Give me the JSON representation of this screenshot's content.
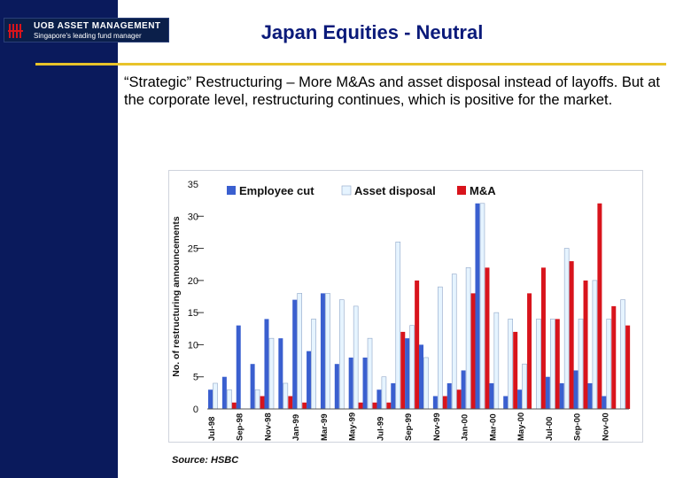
{
  "header": {
    "brand_name": "UOB ASSET MANAGEMENT",
    "brand_tagline": "Singapore's leading fund manager",
    "title": "Japan Equities - Neutral",
    "accent_color": "#e8c32a",
    "sidebar_color": "#0a1a5c"
  },
  "body": {
    "subtitle": "“Strategic” Restructuring – More M&As and asset disposal instead of layoffs.  But at the corporate level, restructuring continues, which is positive for the market."
  },
  "footer": {
    "source": "Source: HSBC"
  },
  "chart_data": {
    "type": "bar",
    "title": "",
    "xlabel": "",
    "ylabel": "No. of restructuring announcements",
    "ylim": [
      0,
      35
    ],
    "yticks": [
      0,
      5,
      10,
      15,
      20,
      25,
      30,
      35
    ],
    "grid": false,
    "legend_position": "top",
    "tick_labels": [
      "Jul-98",
      "Sep-98",
      "Nov-98",
      "Jan-99",
      "Mar-99",
      "May-99",
      "Jul-99",
      "Sep-99",
      "Nov-99",
      "Jan-00",
      "Mar-00",
      "May-00",
      "Jul-00",
      "Sep-00",
      "Nov-00"
    ],
    "categories": [
      "Jul-98",
      "Aug-98",
      "Sep-98",
      "Oct-98",
      "Nov-98",
      "Dec-98",
      "Jan-99",
      "Feb-99",
      "Mar-99",
      "Apr-99",
      "May-99",
      "Jun-99",
      "Jul-99",
      "Aug-99",
      "Sep-99",
      "Oct-99",
      "Nov-99",
      "Dec-99",
      "Jan-00",
      "Feb-00",
      "Mar-00",
      "Apr-00",
      "May-00",
      "Jun-00",
      "Jul-00",
      "Aug-00",
      "Sep-00",
      "Oct-00",
      "Nov-00",
      "Dec-00"
    ],
    "series": [
      {
        "name": "Employee cut",
        "color": "#3a5fcf",
        "values": [
          3,
          5,
          13,
          7,
          14,
          11,
          17,
          9,
          18,
          7,
          8,
          8,
          3,
          4,
          11,
          10,
          2,
          4,
          6,
          32,
          4,
          2,
          3,
          0,
          5,
          4,
          6,
          4,
          2,
          0
        ]
      },
      {
        "name": "Asset disposal",
        "color": "#e6f4ff",
        "values": [
          4,
          3,
          0,
          3,
          11,
          4,
          18,
          14,
          18,
          17,
          16,
          11,
          5,
          26,
          13,
          8,
          19,
          21,
          22,
          32,
          15,
          14,
          7,
          14,
          14,
          25,
          14,
          20,
          14,
          17
        ]
      },
      {
        "name": "M&A",
        "color": "#d8141c",
        "values": [
          0,
          1,
          0,
          2,
          0,
          2,
          1,
          0,
          0,
          0,
          1,
          1,
          1,
          12,
          20,
          0,
          2,
          3,
          18,
          22,
          0,
          12,
          18,
          22,
          14,
          23,
          20,
          32,
          16,
          13
        ]
      }
    ]
  }
}
